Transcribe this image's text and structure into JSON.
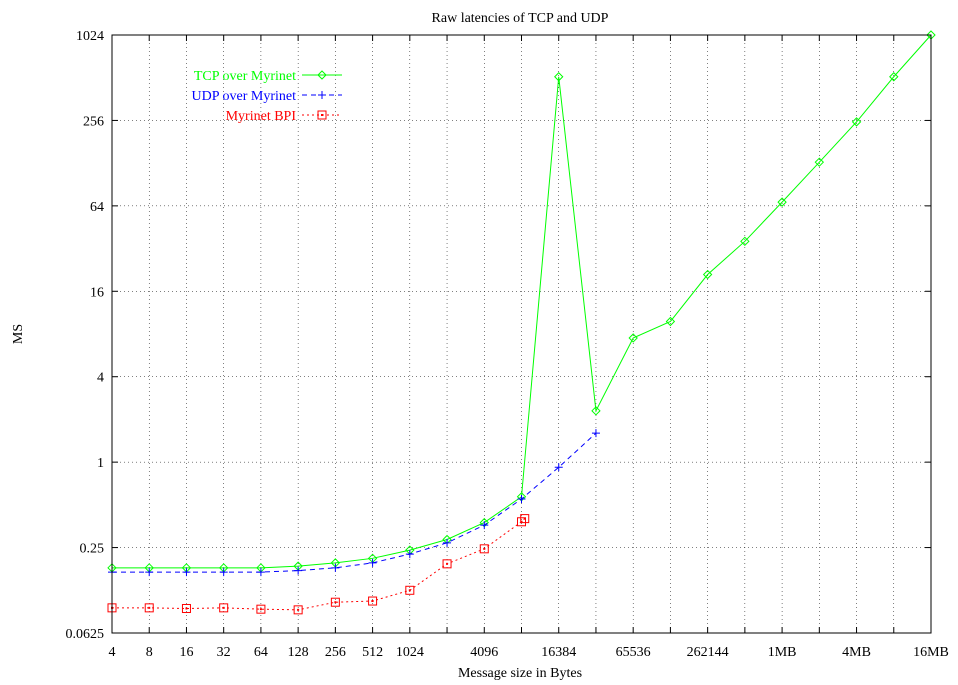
{
  "chart_data": {
    "type": "line",
    "title": "Raw latencies of TCP and UDP",
    "xlabel": "Message size in Bytes",
    "ylabel": "MS",
    "x_scale": "log2",
    "y_scale": "log2",
    "xlim": [
      4,
      16777216
    ],
    "ylim": [
      0.0625,
      1024
    ],
    "grid": true,
    "legend_position": "top-left",
    "x_ticks": [
      {
        "value": 4,
        "label": "4"
      },
      {
        "value": 8,
        "label": "8"
      },
      {
        "value": 16,
        "label": "16"
      },
      {
        "value": 32,
        "label": "32"
      },
      {
        "value": 64,
        "label": "64"
      },
      {
        "value": 128,
        "label": "128"
      },
      {
        "value": 256,
        "label": "256"
      },
      {
        "value": 512,
        "label": "512"
      },
      {
        "value": 1024,
        "label": "1024"
      },
      {
        "value": 4096,
        "label": "4096"
      },
      {
        "value": 16384,
        "label": "16384"
      },
      {
        "value": 65536,
        "label": "65536"
      },
      {
        "value": 262144,
        "label": "262144"
      },
      {
        "value": 1048576,
        "label": "1MB"
      },
      {
        "value": 4194304,
        "label": "4MB"
      },
      {
        "value": 16777216,
        "label": "16MB"
      }
    ],
    "x_grid_values": [
      4,
      8,
      16,
      32,
      64,
      128,
      256,
      512,
      1024,
      2048,
      4096,
      8192,
      16384,
      32768,
      65536,
      131072,
      262144,
      524288,
      1048576,
      2097152,
      4194304,
      8388608,
      16777216
    ],
    "y_ticks": [
      {
        "value": 0.0625,
        "label": "0.0625"
      },
      {
        "value": 0.25,
        "label": "0.25"
      },
      {
        "value": 1,
        "label": "1"
      },
      {
        "value": 4,
        "label": "4"
      },
      {
        "value": 16,
        "label": "16"
      },
      {
        "value": 64,
        "label": "64"
      },
      {
        "value": 256,
        "label": "256"
      },
      {
        "value": 1024,
        "label": "1024"
      }
    ],
    "series": [
      {
        "name": "TCP over Myrinet",
        "color": "#00ff00",
        "marker": "diamond",
        "dash": "solid",
        "points": [
          [
            4,
            0.18
          ],
          [
            8,
            0.18
          ],
          [
            16,
            0.18
          ],
          [
            32,
            0.18
          ],
          [
            64,
            0.18
          ],
          [
            128,
            0.185
          ],
          [
            256,
            0.195
          ],
          [
            512,
            0.21
          ],
          [
            1024,
            0.24
          ],
          [
            2048,
            0.285
          ],
          [
            4096,
            0.375
          ],
          [
            8192,
            0.57
          ],
          [
            16384,
            520
          ],
          [
            32768,
            2.3
          ],
          [
            65536,
            7.5
          ],
          [
            131072,
            9.8
          ],
          [
            262144,
            21
          ],
          [
            524288,
            36
          ],
          [
            1048576,
            68
          ],
          [
            2097152,
            130
          ],
          [
            4194304,
            250
          ],
          [
            8388608,
            520
          ],
          [
            16777216,
            1024
          ]
        ]
      },
      {
        "name": "UDP over Myrinet",
        "color": "#0000ff",
        "marker": "plus",
        "dash": "dashed",
        "points": [
          [
            4,
            0.168
          ],
          [
            8,
            0.168
          ],
          [
            16,
            0.168
          ],
          [
            32,
            0.168
          ],
          [
            64,
            0.168
          ],
          [
            128,
            0.172
          ],
          [
            256,
            0.18
          ],
          [
            512,
            0.195
          ],
          [
            1024,
            0.225
          ],
          [
            2048,
            0.27
          ],
          [
            4096,
            0.36
          ],
          [
            8192,
            0.55
          ],
          [
            16384,
            0.92
          ],
          [
            32768,
            1.6
          ]
        ]
      },
      {
        "name": "Myrinet BPI",
        "color": "#ff0000",
        "marker": "square",
        "dash": "dotted",
        "points": [
          [
            4,
            0.094
          ],
          [
            8,
            0.094
          ],
          [
            16,
            0.093
          ],
          [
            32,
            0.094
          ],
          [
            64,
            0.092
          ],
          [
            128,
            0.091
          ],
          [
            256,
            0.103
          ],
          [
            512,
            0.105
          ],
          [
            1024,
            0.125
          ],
          [
            2048,
            0.192
          ],
          [
            4096,
            0.245
          ],
          [
            8192,
            0.38
          ],
          [
            8700,
            0.4
          ]
        ]
      }
    ]
  }
}
